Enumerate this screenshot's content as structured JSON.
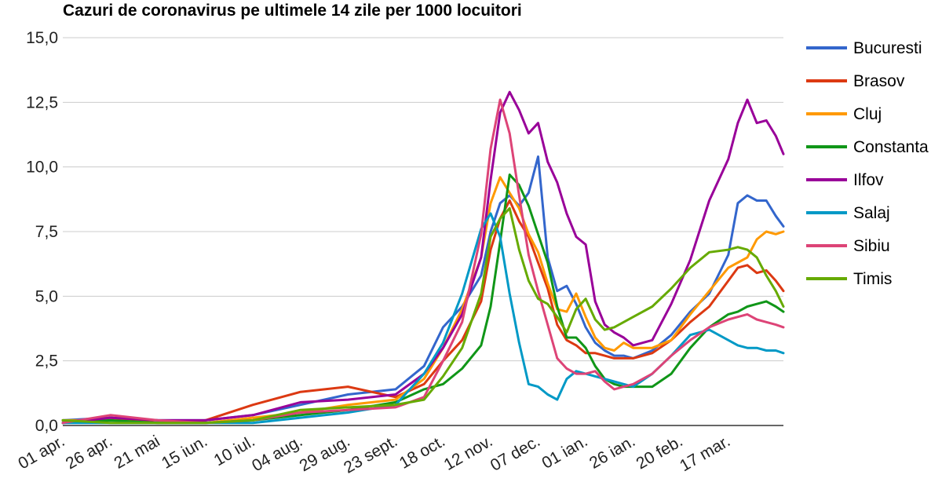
{
  "chart_data": {
    "type": "line",
    "title": "Cazuri de coronavirus pe ultimele 14 zile per 1000 locuitori",
    "xlabel": "",
    "ylabel": "",
    "ylim": [
      0,
      15
    ],
    "yticks": [
      "0,0",
      "2,5",
      "5,0",
      "7,5",
      "10,0",
      "12,5",
      "15,0"
    ],
    "x_tick_labels": [
      "01 apr.",
      "26 apr.",
      "21 mai",
      "15 iun.",
      "10 iul.",
      "04 aug.",
      "29 aug.",
      "23 sept.",
      "18 oct.",
      "12 nov.",
      "07 dec.",
      "01 ian.",
      "26 ian.",
      "20 feb.",
      "17 mar."
    ],
    "x_tick_interval_days": 25,
    "x_span_days": 379,
    "grid": true,
    "legend_position": "right",
    "x_days": [
      0,
      25,
      50,
      75,
      100,
      125,
      150,
      175,
      190,
      200,
      210,
      220,
      225,
      230,
      235,
      240,
      245,
      250,
      255,
      260,
      265,
      270,
      275,
      280,
      285,
      290,
      295,
      300,
      310,
      320,
      330,
      340,
      350,
      355,
      360,
      365,
      370,
      375,
      379
    ],
    "series": [
      {
        "name": "Bucuresti",
        "color": "#3366cc",
        "values": [
          0.2,
          0.3,
          0.2,
          0.2,
          0.4,
          0.8,
          1.2,
          1.4,
          2.3,
          3.8,
          4.6,
          5.8,
          7.5,
          8.6,
          8.9,
          8.5,
          9.0,
          10.4,
          6.5,
          5.2,
          5.4,
          4.7,
          3.8,
          3.2,
          2.9,
          2.7,
          2.7,
          2.6,
          2.9,
          3.5,
          4.4,
          5.1,
          6.6,
          8.6,
          8.9,
          8.7,
          8.7,
          8.1,
          7.7
        ]
      },
      {
        "name": "Brasov",
        "color": "#dc3912",
        "values": [
          0.1,
          0.3,
          0.1,
          0.2,
          0.8,
          1.3,
          1.5,
          1.1,
          1.6,
          2.5,
          3.3,
          4.8,
          6.8,
          8.0,
          8.7,
          7.9,
          7.3,
          6.3,
          5.3,
          3.9,
          3.3,
          3.1,
          2.8,
          2.8,
          2.7,
          2.6,
          2.6,
          2.6,
          2.8,
          3.3,
          4.0,
          4.6,
          5.6,
          6.1,
          6.2,
          5.9,
          6.0,
          5.6,
          5.2
        ]
      },
      {
        "name": "Cluj",
        "color": "#ff9900",
        "values": [
          0.2,
          0.2,
          0.1,
          0.1,
          0.3,
          0.5,
          0.8,
          1.0,
          1.8,
          3.0,
          4.5,
          6.5,
          8.6,
          9.6,
          9.0,
          8.4,
          7.4,
          6.7,
          5.5,
          4.5,
          4.4,
          5.1,
          4.2,
          3.4,
          3.0,
          2.9,
          3.2,
          3.0,
          3.0,
          3.3,
          4.3,
          5.2,
          6.1,
          6.3,
          6.5,
          7.2,
          7.5,
          7.4,
          7.5
        ]
      },
      {
        "name": "Constanta",
        "color": "#109618",
        "values": [
          0.1,
          0.2,
          0.1,
          0.1,
          0.2,
          0.4,
          0.6,
          0.9,
          1.4,
          1.6,
          2.2,
          3.1,
          4.6,
          7.1,
          9.7,
          9.3,
          8.5,
          7.4,
          6.3,
          4.6,
          3.4,
          3.4,
          3.0,
          2.3,
          1.8,
          1.6,
          1.5,
          1.5,
          1.5,
          2.0,
          3.0,
          3.8,
          4.3,
          4.4,
          4.6,
          4.7,
          4.8,
          4.6,
          4.4
        ]
      },
      {
        "name": "Ilfov",
        "color": "#990099",
        "values": [
          0.1,
          0.3,
          0.2,
          0.2,
          0.4,
          0.9,
          1.0,
          1.2,
          2.0,
          3.0,
          4.3,
          6.5,
          9.5,
          12.1,
          12.9,
          12.2,
          11.3,
          11.7,
          10.2,
          9.4,
          8.2,
          7.3,
          7.0,
          4.8,
          3.9,
          3.6,
          3.4,
          3.1,
          3.3,
          4.7,
          6.4,
          8.7,
          10.3,
          11.7,
          12.6,
          11.7,
          11.8,
          11.2,
          10.5
        ]
      },
      {
        "name": "Salaj",
        "color": "#0099c6",
        "values": [
          0.1,
          0.1,
          0.1,
          0.1,
          0.1,
          0.3,
          0.5,
          0.8,
          2.0,
          3.2,
          5.1,
          7.6,
          8.2,
          7.3,
          5.1,
          3.2,
          1.6,
          1.5,
          1.2,
          1.0,
          1.8,
          2.1,
          2.0,
          1.9,
          1.8,
          1.7,
          1.6,
          1.5,
          2.0,
          2.7,
          3.5,
          3.7,
          3.3,
          3.1,
          3.0,
          3.0,
          2.9,
          2.9,
          2.8
        ]
      },
      {
        "name": "Sibiu",
        "color": "#dd4477",
        "values": [
          0.1,
          0.4,
          0.2,
          0.1,
          0.2,
          0.5,
          0.6,
          0.7,
          1.1,
          2.5,
          4.0,
          7.4,
          10.7,
          12.6,
          11.3,
          8.9,
          6.6,
          5.2,
          3.9,
          2.6,
          2.2,
          2.0,
          2.0,
          2.1,
          1.7,
          1.4,
          1.5,
          1.6,
          2.0,
          2.7,
          3.3,
          3.8,
          4.1,
          4.2,
          4.3,
          4.1,
          4.0,
          3.9,
          3.8
        ]
      },
      {
        "name": "Timis",
        "color": "#66aa00",
        "values": [
          0.2,
          0.1,
          0.1,
          0.1,
          0.2,
          0.6,
          0.7,
          0.8,
          1.0,
          1.9,
          3.0,
          5.1,
          7.3,
          8.0,
          8.4,
          6.8,
          5.6,
          4.9,
          4.7,
          4.2,
          3.6,
          4.5,
          4.9,
          4.1,
          3.7,
          3.8,
          4.0,
          4.2,
          4.6,
          5.3,
          6.1,
          6.7,
          6.8,
          6.9,
          6.8,
          6.5,
          5.8,
          5.2,
          4.6
        ]
      }
    ]
  }
}
